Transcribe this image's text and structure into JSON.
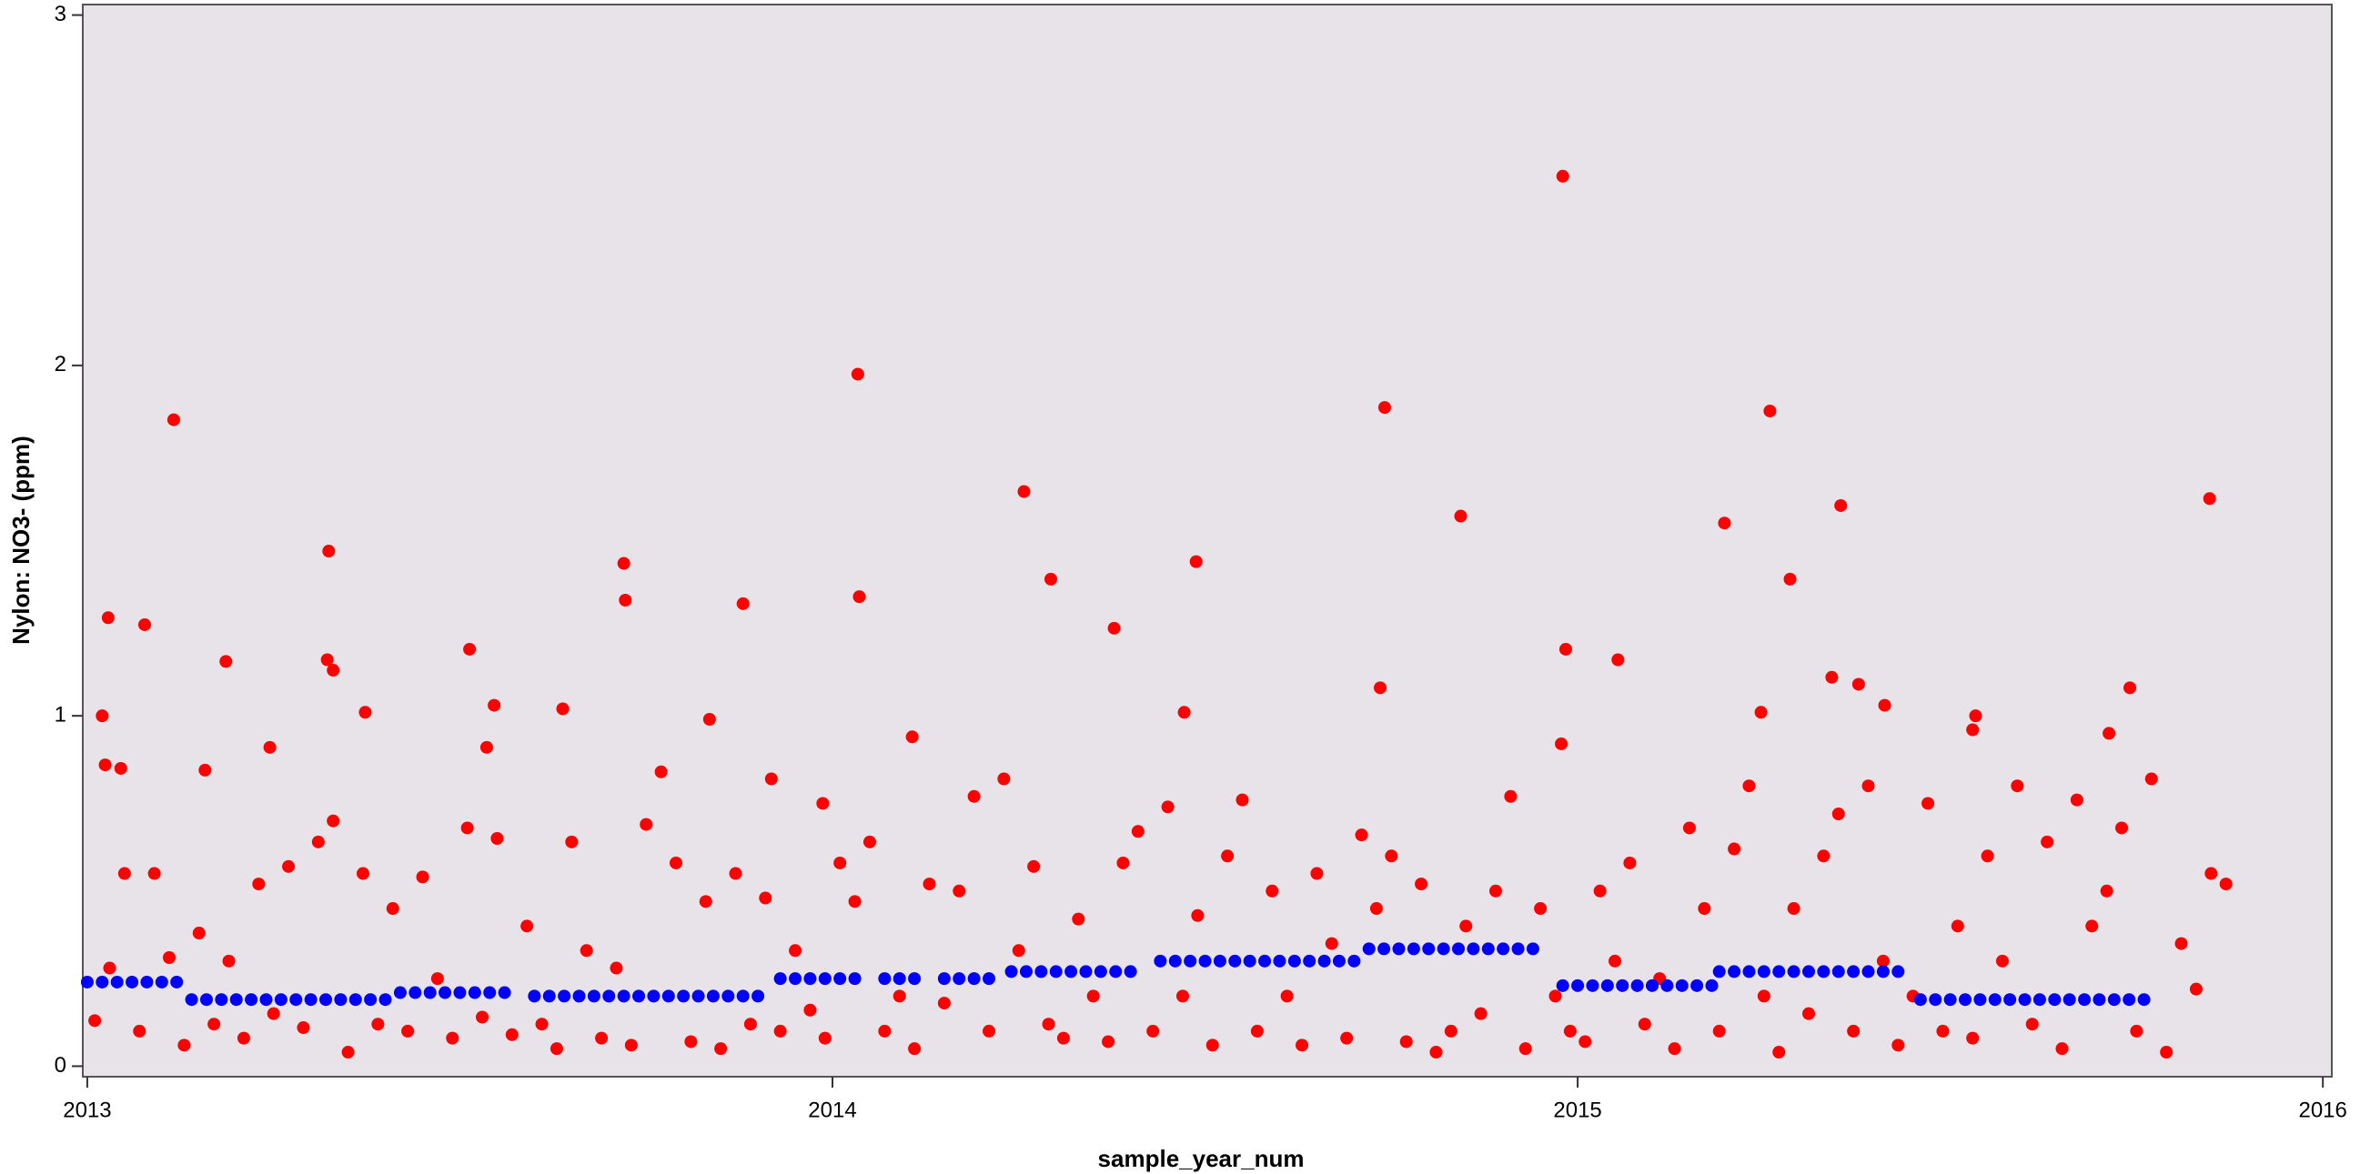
{
  "chart_data": {
    "type": "scatter",
    "x_label": "sample_year_num",
    "y_label": "Nylon: NO3- (ppm)",
    "xlim": [
      2012.994,
      2016.012
    ],
    "ylim": [
      -0.03,
      3.03
    ],
    "xticks": [
      2013,
      2014,
      2015,
      2016
    ],
    "yticks": [
      0,
      1,
      2,
      3
    ],
    "background": "#e8e3e8",
    "series": [
      {
        "color": "#ff0000",
        "x": [
          2013.116,
          2013.028,
          2013.02,
          2013.024,
          2013.045,
          2013.077,
          2013.186,
          2013.158,
          2013.245,
          2013.324,
          2013.322,
          2013.33,
          2013.373,
          2013.513,
          2013.546,
          2013.536,
          2013.638,
          2013.72,
          2013.722,
          2013.835,
          2013.88,
          2013.918,
          2014.034,
          2014.036,
          2013.987,
          2014.107,
          2014.257,
          2014.293,
          2014.378,
          2014.488,
          2014.472,
          2014.741,
          2014.735,
          2014.843,
          2014.98,
          2014.984,
          2014.978,
          2015.054,
          2015.197,
          2015.258,
          2015.285,
          2015.246,
          2015.353,
          2015.341,
          2015.377,
          2015.412,
          2015.534,
          2015.53,
          2015.741,
          2015.848,
          2015.713,
          2013.01,
          2013.03,
          2013.05,
          2013.07,
          2013.09,
          2013.11,
          2013.13,
          2013.15,
          2013.17,
          2013.19,
          2013.21,
          2013.23,
          2013.25,
          2013.27,
          2013.29,
          2013.31,
          2013.33,
          2013.35,
          2013.37,
          2013.39,
          2013.41,
          2013.43,
          2013.45,
          2013.47,
          2013.49,
          2013.51,
          2013.53,
          2013.55,
          2013.57,
          2013.59,
          2013.61,
          2013.63,
          2013.65,
          2013.67,
          2013.69,
          2013.71,
          2013.73,
          2013.75,
          2013.77,
          2013.79,
          2013.81,
          2013.83,
          2013.85,
          2013.87,
          2013.89,
          2013.91,
          2013.93,
          2013.95,
          2013.97,
          2013.99,
          2014.01,
          2014.03,
          2014.05,
          2014.07,
          2014.09,
          2014.11,
          2014.13,
          2014.15,
          2014.17,
          2014.19,
          2014.21,
          2014.23,
          2014.25,
          2014.27,
          2014.29,
          2014.31,
          2014.33,
          2014.35,
          2014.37,
          2014.39,
          2014.41,
          2014.43,
          2014.45,
          2014.47,
          2014.49,
          2014.51,
          2014.53,
          2014.55,
          2014.57,
          2014.59,
          2014.61,
          2014.63,
          2014.65,
          2014.67,
          2014.69,
          2014.71,
          2014.73,
          2014.75,
          2014.77,
          2014.79,
          2014.81,
          2014.83,
          2014.85,
          2014.87,
          2014.89,
          2014.91,
          2014.93,
          2014.95,
          2014.97,
          2014.99,
          2015.01,
          2015.03,
          2015.05,
          2015.07,
          2015.09,
          2015.11,
          2015.13,
          2015.15,
          2015.17,
          2015.19,
          2015.21,
          2015.23,
          2015.25,
          2015.27,
          2015.29,
          2015.31,
          2015.33,
          2015.35,
          2015.37,
          2015.39,
          2015.41,
          2015.43,
          2015.45,
          2015.47,
          2015.49,
          2015.51,
          2015.53,
          2015.55,
          2015.57,
          2015.59,
          2015.61,
          2015.63,
          2015.65,
          2015.67,
          2015.69,
          2015.71,
          2015.73,
          2015.75,
          2015.77,
          2015.79,
          2015.81,
          2015.83,
          2015.85,
          2015.87
        ],
        "values": [
          1.845,
          1.28,
          1.0,
          0.86,
          0.85,
          1.26,
          1.155,
          0.845,
          0.91,
          1.47,
          1.16,
          1.13,
          1.01,
          1.19,
          1.03,
          0.91,
          1.02,
          1.435,
          1.33,
          0.99,
          1.32,
          0.82,
          1.975,
          1.34,
          0.75,
          0.94,
          1.64,
          1.39,
          1.25,
          1.44,
          1.01,
          1.88,
          1.08,
          1.57,
          2.54,
          1.19,
          0.92,
          1.16,
          1.55,
          1.87,
          1.39,
          1.01,
          1.6,
          1.11,
          1.09,
          1.03,
          1.0,
          0.96,
          1.08,
          1.62,
          0.95,
          0.13,
          0.28,
          0.55,
          0.1,
          0.55,
          0.31,
          0.06,
          0.38,
          0.12,
          0.3,
          0.08,
          0.52,
          0.15,
          0.57,
          0.11,
          0.64,
          0.7,
          0.04,
          0.55,
          0.12,
          0.45,
          0.1,
          0.54,
          0.25,
          0.08,
          0.68,
          0.14,
          0.65,
          0.09,
          0.4,
          0.12,
          0.05,
          0.64,
          0.33,
          0.08,
          0.28,
          0.06,
          0.69,
          0.84,
          0.58,
          0.07,
          0.47,
          0.05,
          0.55,
          0.12,
          0.48,
          0.1,
          0.33,
          0.16,
          0.08,
          0.58,
          0.47,
          0.64,
          0.1,
          0.2,
          0.05,
          0.52,
          0.18,
          0.5,
          0.77,
          0.1,
          0.82,
          0.33,
          0.57,
          0.12,
          0.08,
          0.42,
          0.2,
          0.07,
          0.58,
          0.67,
          0.1,
          0.74,
          0.2,
          0.43,
          0.06,
          0.6,
          0.76,
          0.1,
          0.5,
          0.2,
          0.06,
          0.55,
          0.35,
          0.08,
          0.66,
          0.45,
          0.6,
          0.07,
          0.52,
          0.04,
          0.1,
          0.4,
          0.15,
          0.5,
          0.77,
          0.05,
          0.45,
          0.2,
          0.1,
          0.07,
          0.5,
          0.3,
          0.58,
          0.12,
          0.25,
          0.05,
          0.68,
          0.45,
          0.1,
          0.62,
          0.8,
          0.2,
          0.04,
          0.45,
          0.15,
          0.6,
          0.72,
          0.1,
          0.8,
          0.3,
          0.06,
          0.2,
          0.75,
          0.1,
          0.4,
          0.08,
          0.6,
          0.3,
          0.8,
          0.12,
          0.64,
          0.05,
          0.76,
          0.4,
          0.5,
          0.68,
          0.1,
          0.82,
          0.04,
          0.35,
          0.22,
          0.55,
          0.52
        ]
      },
      {
        "color": "#0000ff",
        "x": [
          2013.0,
          2013.02,
          2013.04,
          2013.06,
          2013.08,
          2013.1,
          2013.12,
          2013.14,
          2013.16,
          2013.18,
          2013.2,
          2013.22,
          2013.24,
          2013.26,
          2013.28,
          2013.3,
          2013.32,
          2013.34,
          2013.36,
          2013.38,
          2013.4,
          2013.42,
          2013.44,
          2013.46,
          2013.48,
          2013.5,
          2013.52,
          2013.54,
          2013.56,
          2013.6,
          2013.62,
          2013.64,
          2013.66,
          2013.68,
          2013.7,
          2013.72,
          2013.74,
          2013.76,
          2013.78,
          2013.8,
          2013.82,
          2013.84,
          2013.86,
          2013.88,
          2013.9,
          2013.93,
          2013.95,
          2013.97,
          2013.99,
          2014.01,
          2014.03,
          2014.07,
          2014.09,
          2014.11,
          2014.15,
          2014.17,
          2014.19,
          2014.21,
          2014.24,
          2014.26,
          2014.28,
          2014.3,
          2014.32,
          2014.34,
          2014.36,
          2014.38,
          2014.4,
          2014.44,
          2014.46,
          2014.48,
          2014.5,
          2014.52,
          2014.54,
          2014.56,
          2014.58,
          2014.6,
          2014.62,
          2014.64,
          2014.66,
          2014.68,
          2014.7,
          2014.72,
          2014.74,
          2014.76,
          2014.78,
          2014.8,
          2014.82,
          2014.84,
          2014.86,
          2014.88,
          2014.9,
          2014.92,
          2014.94,
          2014.98,
          2015.0,
          2015.02,
          2015.04,
          2015.06,
          2015.08,
          2015.1,
          2015.12,
          2015.14,
          2015.16,
          2015.18,
          2015.19,
          2015.21,
          2015.23,
          2015.25,
          2015.27,
          2015.29,
          2015.31,
          2015.33,
          2015.35,
          2015.37,
          2015.39,
          2015.41,
          2015.43,
          2015.46,
          2015.48,
          2015.5,
          2015.52,
          2015.54,
          2015.56,
          2015.58,
          2015.6,
          2015.62,
          2015.64,
          2015.66,
          2015.68,
          2015.7,
          2015.72,
          2015.74,
          2015.76
        ],
        "values": [
          0.24,
          0.24,
          0.24,
          0.24,
          0.24,
          0.24,
          0.24,
          0.19,
          0.19,
          0.19,
          0.19,
          0.19,
          0.19,
          0.19,
          0.19,
          0.19,
          0.19,
          0.19,
          0.19,
          0.19,
          0.19,
          0.21,
          0.21,
          0.21,
          0.21,
          0.21,
          0.21,
          0.21,
          0.21,
          0.2,
          0.2,
          0.2,
          0.2,
          0.2,
          0.2,
          0.2,
          0.2,
          0.2,
          0.2,
          0.2,
          0.2,
          0.2,
          0.2,
          0.2,
          0.2,
          0.25,
          0.25,
          0.25,
          0.25,
          0.25,
          0.25,
          0.25,
          0.25,
          0.25,
          0.25,
          0.25,
          0.25,
          0.25,
          0.27,
          0.27,
          0.27,
          0.27,
          0.27,
          0.27,
          0.27,
          0.27,
          0.27,
          0.3,
          0.3,
          0.3,
          0.3,
          0.3,
          0.3,
          0.3,
          0.3,
          0.3,
          0.3,
          0.3,
          0.3,
          0.3,
          0.3,
          0.335,
          0.335,
          0.335,
          0.335,
          0.335,
          0.335,
          0.335,
          0.335,
          0.335,
          0.335,
          0.335,
          0.335,
          0.23,
          0.23,
          0.23,
          0.23,
          0.23,
          0.23,
          0.23,
          0.23,
          0.23,
          0.23,
          0.23,
          0.27,
          0.27,
          0.27,
          0.27,
          0.27,
          0.27,
          0.27,
          0.27,
          0.27,
          0.27,
          0.27,
          0.27,
          0.27,
          0.19,
          0.19,
          0.19,
          0.19,
          0.19,
          0.19,
          0.19,
          0.19,
          0.19,
          0.19,
          0.19,
          0.19,
          0.19,
          0.19,
          0.19,
          0.19
        ]
      }
    ]
  }
}
